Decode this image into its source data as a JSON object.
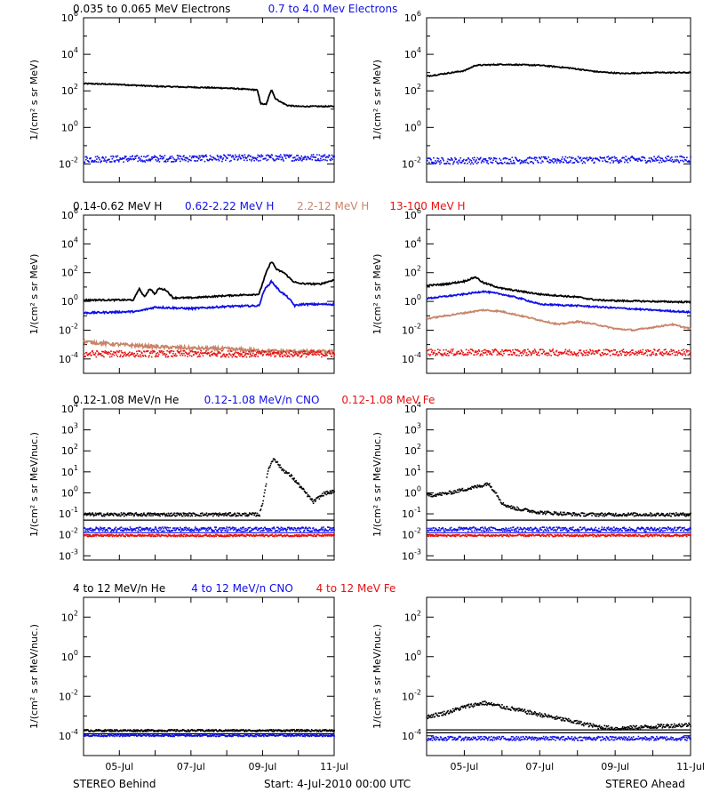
{
  "footer": {
    "left": "STEREO Behind",
    "center": "Start:  4-Jul-2010 00:00 UTC",
    "right": "STEREO Ahead"
  },
  "colors": {
    "black": "#000000",
    "blue": "#1010e6",
    "tan": "#c8856a",
    "red": "#e61010"
  },
  "x_axis": {
    "start_day": 4,
    "end_day": 11,
    "tick_labels": [
      {
        "day": 5,
        "label": "05-Jul"
      },
      {
        "day": 7,
        "label": "07-Jul"
      },
      {
        "day": 9,
        "label": "09-Jul"
      },
      {
        "day": 11,
        "label": "11-Jul"
      }
    ]
  },
  "chart_data": [
    {
      "type": "line",
      "id": "electrons",
      "legend": [
        {
          "text": "0.035 to 0.065 MeV Electrons",
          "color": "#000000"
        },
        {
          "text": "0.7 to 4.0 Mev Electrons",
          "color": "#1010e6"
        }
      ],
      "ylabel": "1/(cm² s sr MeV)",
      "ylim_exp": [
        -3,
        6
      ],
      "yticks_exp": [
        -2,
        0,
        2,
        4,
        6
      ],
      "yscale": "log",
      "left": {
        "series": [
          {
            "name": "0.035 to 0.065 MeV Electrons",
            "color": "#000000",
            "noise": 0.03,
            "x": [
              4.0,
              5.0,
              6.0,
              7.0,
              8.0,
              8.85,
              8.95,
              9.1,
              9.25,
              9.35,
              9.5,
              9.7,
              10.0,
              11.0
            ],
            "log_y": [
              2.4,
              2.35,
              2.25,
              2.2,
              2.15,
              2.05,
              1.3,
              1.25,
              2.1,
              1.6,
              1.4,
              1.2,
              1.15,
              1.15
            ]
          },
          {
            "name": "0.7 to 4.0 Mev Electrons",
            "color": "#1010e6",
            "noise": 0.18,
            "scatter": true,
            "x": [
              4.0,
              11.0
            ],
            "log_y": [
              -1.7,
              -1.6
            ]
          }
        ]
      },
      "right": {
        "series": [
          {
            "name": "0.035 to 0.065 MeV Electrons",
            "color": "#000000",
            "noise": 0.03,
            "x": [
              4.0,
              5.0,
              5.3,
              6.0,
              7.0,
              7.8,
              8.5,
              9.2,
              10.0,
              11.0
            ],
            "log_y": [
              2.8,
              3.1,
              3.4,
              3.45,
              3.4,
              3.25,
              3.05,
              2.95,
              3.0,
              3.0
            ]
          },
          {
            "name": "0.7 to 4.0 Mev Electrons",
            "color": "#1010e6",
            "noise": 0.18,
            "scatter": true,
            "x": [
              4.0,
              11.0
            ],
            "log_y": [
              -1.8,
              -1.7
            ]
          }
        ]
      }
    },
    {
      "type": "line",
      "id": "protons",
      "legend": [
        {
          "text": "0.14-0.62 MeV H",
          "color": "#000000"
        },
        {
          "text": "0.62-2.22 MeV H",
          "color": "#1010e6"
        },
        {
          "text": "2.2-12 MeV H",
          "color": "#c8856a"
        },
        {
          "text": "13-100 MeV H",
          "color": "#e61010"
        }
      ],
      "ylabel": "1/(cm² s sr MeV)",
      "ylim_exp": [
        -5,
        6
      ],
      "yticks_exp": [
        -4,
        -2,
        0,
        2,
        4,
        6
      ],
      "yscale": "log",
      "left": {
        "series": [
          {
            "name": "0.14-0.62 MeV H",
            "color": "#000000",
            "noise": 0.05,
            "x": [
              4.0,
              5.4,
              5.55,
              5.7,
              5.85,
              6.0,
              6.1,
              6.3,
              6.5,
              7.0,
              8.0,
              8.9,
              9.1,
              9.25,
              9.4,
              9.6,
              9.85,
              10.0,
              10.6,
              11.0
            ],
            "log_y": [
              0.1,
              0.1,
              0.9,
              0.3,
              0.9,
              0.5,
              0.9,
              0.8,
              0.25,
              0.25,
              0.4,
              0.5,
              2.0,
              2.8,
              2.2,
              2.0,
              1.4,
              1.25,
              1.2,
              1.5
            ]
          },
          {
            "name": "0.62-2.22 MeV H",
            "color": "#1010e6",
            "noise": 0.06,
            "x": [
              4.0,
              5.5,
              6.0,
              7.0,
              8.0,
              8.9,
              9.05,
              9.25,
              9.45,
              9.7,
              9.9,
              10.1,
              11.0
            ],
            "log_y": [
              -0.8,
              -0.7,
              -0.4,
              -0.5,
              -0.35,
              -0.3,
              0.8,
              1.4,
              0.8,
              0.3,
              -0.3,
              -0.2,
              -0.2
            ]
          },
          {
            "name": "2.2-12 MeV H",
            "color": "#c8856a",
            "noise": 0.12,
            "x": [
              4.0,
              5.0,
              6.0,
              7.0,
              8.0,
              9.0,
              11.0
            ],
            "log_y": [
              -2.8,
              -3.0,
              -3.15,
              -3.25,
              -3.3,
              -3.45,
              -3.5
            ]
          },
          {
            "name": "13-100 MeV H",
            "color": "#e61010",
            "noise": 0.22,
            "scatter": true,
            "x": [
              4.0,
              11.0
            ],
            "log_y": [
              -3.6,
              -3.6
            ]
          }
        ]
      },
      "right": {
        "series": [
          {
            "name": "0.14-0.62 MeV H",
            "color": "#000000",
            "noise": 0.05,
            "x": [
              4.0,
              4.5,
              5.0,
              5.3,
              5.5,
              6.0,
              6.5,
              7.0,
              8.0,
              8.5,
              9.0,
              10.0,
              11.0
            ],
            "log_y": [
              1.1,
              1.2,
              1.4,
              1.7,
              1.3,
              0.9,
              0.7,
              0.5,
              0.3,
              0.1,
              0.05,
              0.0,
              -0.05
            ]
          },
          {
            "name": "0.62-2.22 MeV H",
            "color": "#1010e6",
            "noise": 0.05,
            "x": [
              4.0,
              4.5,
              5.0,
              5.5,
              6.0,
              6.5,
              7.0,
              8.0,
              9.0,
              10.0,
              11.0
            ],
            "log_y": [
              0.2,
              0.35,
              0.5,
              0.7,
              0.5,
              0.2,
              -0.2,
              -0.3,
              -0.45,
              -0.6,
              -0.75
            ]
          },
          {
            "name": "2.2-12 MeV H",
            "color": "#c8856a",
            "noise": 0.05,
            "x": [
              4.0,
              4.5,
              5.0,
              5.5,
              6.0,
              6.5,
              7.0,
              7.5,
              8.0,
              8.5,
              9.0,
              9.5,
              10.0,
              10.5,
              11.0
            ],
            "log_y": [
              -1.2,
              -1.0,
              -0.8,
              -0.6,
              -0.7,
              -1.0,
              -1.3,
              -1.6,
              -1.4,
              -1.6,
              -1.9,
              -2.0,
              -1.8,
              -1.6,
              -1.9
            ]
          },
          {
            "name": "13-100 MeV H",
            "color": "#e61010",
            "noise": 0.22,
            "scatter": true,
            "x": [
              4.0,
              11.0
            ],
            "log_y": [
              -3.5,
              -3.5
            ]
          }
        ]
      }
    },
    {
      "type": "scatter",
      "id": "heavy-low",
      "legend": [
        {
          "text": "0.12-1.08 MeV/n He",
          "color": "#000000"
        },
        {
          "text": "0.12-1.08 MeV/n CNO",
          "color": "#1010e6"
        },
        {
          "text": "0.12-1.08 MeV Fe",
          "color": "#e61010"
        }
      ],
      "ylabel": "1/(cm² s sr MeV/nuc.)",
      "ylim_exp": [
        -3.2,
        4
      ],
      "yticks_exp": [
        -3,
        -2,
        -1,
        0,
        1,
        2,
        3,
        4
      ],
      "yscale": "log",
      "left": {
        "series": [
          {
            "name": "0.12-1.08 MeV/n He",
            "color": "#000000",
            "noise": 0.08,
            "scatter": true,
            "x": [
              4.0,
              8.9,
              9.0,
              9.15,
              9.3,
              9.5,
              9.8,
              10.0,
              10.2,
              10.4,
              10.7,
              11.0
            ],
            "log_y": [
              -1.0,
              -1.0,
              -0.3,
              1.2,
              1.7,
              1.2,
              0.8,
              0.4,
              0.0,
              -0.4,
              0.0,
              0.1
            ]
          },
          {
            "name": "0.12-1.08 MeV/n CNO",
            "color": "#1010e6",
            "noise": 0.1,
            "scatter": true,
            "x": [
              4.0,
              11.0
            ],
            "log_y": [
              -1.7,
              -1.7
            ]
          },
          {
            "name": "0.12-1.08 MeV Fe",
            "color": "#e61010",
            "noise": 0.05,
            "scatter": true,
            "x": [
              4.0,
              11.0
            ],
            "log_y": [
              -2.0,
              -2.0
            ]
          },
          {
            "name": "baseline",
            "color": "#000000",
            "noise": 0.0,
            "x": [
              4.0,
              11.0
            ],
            "log_y": [
              -1.3,
              -1.3
            ]
          },
          {
            "name": "baseline-2",
            "color": "#1010e6",
            "noise": 0.0,
            "x": [
              4.0,
              11.0
            ],
            "log_y": [
              -1.9,
              -1.9
            ]
          }
        ]
      },
      "right": {
        "series": [
          {
            "name": "0.12-1.08 MeV/n He",
            "color": "#000000",
            "noise": 0.08,
            "scatter": true,
            "x": [
              4.0,
              4.5,
              5.0,
              5.5,
              5.6,
              5.8,
              6.0,
              6.3,
              7.0,
              8.0,
              9.0,
              10.0,
              11.0
            ],
            "log_y": [
              -0.1,
              0.0,
              0.2,
              0.4,
              0.5,
              0.1,
              -0.5,
              -0.7,
              -0.9,
              -1.0,
              -1.0,
              -1.0,
              -1.0
            ]
          },
          {
            "name": "0.12-1.08 MeV/n CNO",
            "color": "#1010e6",
            "noise": 0.1,
            "scatter": true,
            "x": [
              4.0,
              11.0
            ],
            "log_y": [
              -1.7,
              -1.7
            ]
          },
          {
            "name": "0.12-1.08 MeV Fe",
            "color": "#e61010",
            "noise": 0.05,
            "scatter": true,
            "x": [
              4.0,
              11.0
            ],
            "log_y": [
              -2.0,
              -2.0
            ]
          },
          {
            "name": "baseline",
            "color": "#000000",
            "noise": 0.0,
            "x": [
              4.0,
              11.0
            ],
            "log_y": [
              -1.3,
              -1.3
            ]
          },
          {
            "name": "baseline-2",
            "color": "#1010e6",
            "noise": 0.0,
            "x": [
              4.0,
              11.0
            ],
            "log_y": [
              -1.9,
              -1.9
            ]
          }
        ]
      }
    },
    {
      "type": "scatter",
      "id": "heavy-high",
      "legend": [
        {
          "text": "4 to 12 MeV/n He",
          "color": "#000000"
        },
        {
          "text": "4 to 12 MeV/n CNO",
          "color": "#1010e6"
        },
        {
          "text": "4 to 12 MeV Fe",
          "color": "#e61010"
        }
      ],
      "ylabel": "1/(cm² s sr MeV/nuc.)",
      "ylim_exp": [
        -5,
        3
      ],
      "yticks_exp": [
        -4,
        -2,
        0,
        2
      ],
      "yscale": "log",
      "left": {
        "series": [
          {
            "name": "4 to 12 MeV/n He",
            "color": "#000000",
            "noise": 0.05,
            "scatter": true,
            "x": [
              4.0,
              11.0
            ],
            "log_y": [
              -3.7,
              -3.7
            ]
          },
          {
            "name": "baseline",
            "color": "#000000",
            "noise": 0.0,
            "x": [
              4.0,
              11.0
            ],
            "log_y": [
              -3.9,
              -3.9
            ]
          },
          {
            "name": "4 to 12 MeV/n CNO",
            "color": "#1010e6",
            "noise": 0.05,
            "scatter": true,
            "x": [
              4.0,
              11.0
            ],
            "log_y": [
              -3.95,
              -3.95
            ]
          }
        ]
      },
      "right": {
        "series": [
          {
            "name": "4 to 12 MeV/n He",
            "color": "#000000",
            "noise": 0.1,
            "scatter": true,
            "x": [
              4.0,
              4.5,
              5.0,
              5.5,
              6.0,
              6.5,
              7.0,
              7.5,
              8.0,
              8.5,
              9.0,
              10.0,
              11.0
            ],
            "log_y": [
              -3.0,
              -2.8,
              -2.5,
              -2.3,
              -2.5,
              -2.7,
              -2.9,
              -3.1,
              -3.3,
              -3.5,
              -3.6,
              -3.5,
              -3.4
            ]
          },
          {
            "name": "baseline",
            "color": "#000000",
            "noise": 0.0,
            "x": [
              4.0,
              11.0
            ],
            "log_y": [
              -3.7,
              -3.7
            ]
          },
          {
            "name": "baseline-2",
            "color": "#000000",
            "noise": 0.0,
            "x": [
              4.0,
              11.0
            ],
            "log_y": [
              -3.85,
              -3.85
            ]
          },
          {
            "name": "4 to 12 MeV/n CNO",
            "color": "#1010e6",
            "noise": 0.1,
            "scatter": true,
            "x": [
              4.0,
              11.0
            ],
            "log_y": [
              -4.1,
              -4.1
            ]
          }
        ]
      }
    }
  ]
}
